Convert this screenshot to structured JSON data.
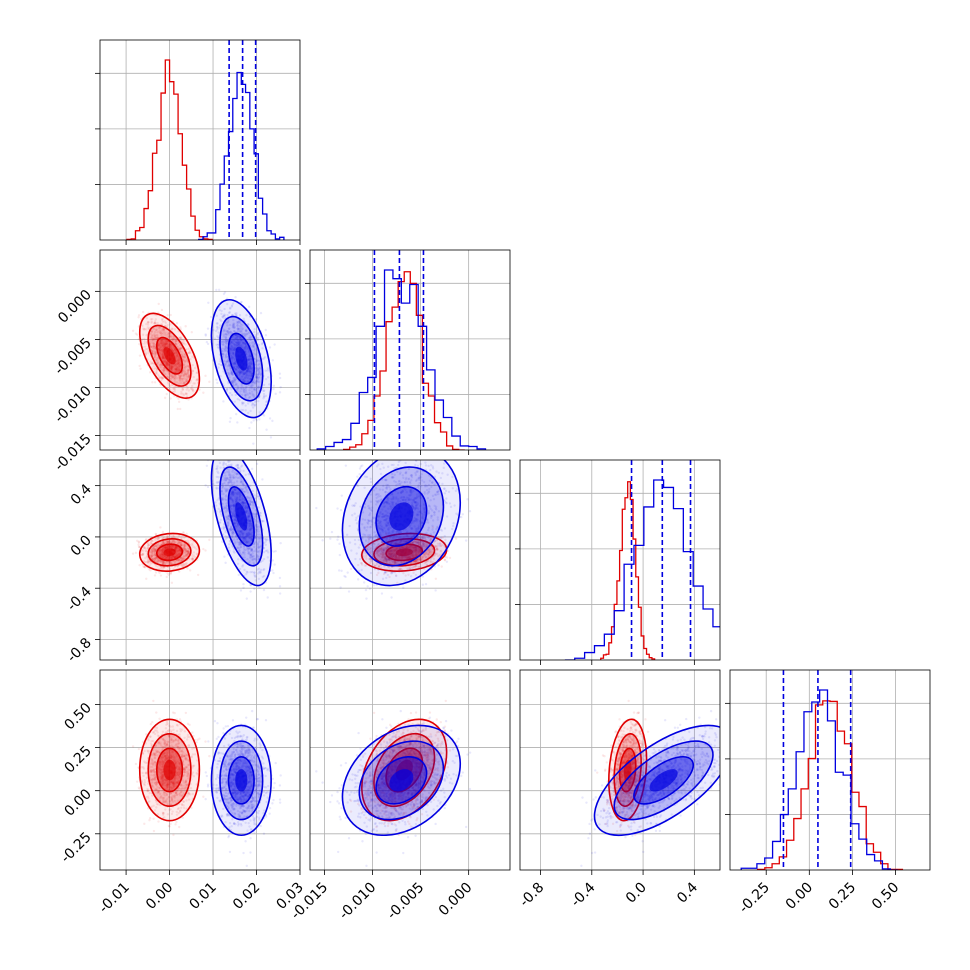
{
  "chart_data": {
    "type": "corner",
    "grid": true,
    "parameters": [
      {
        "range": [
          -0.016,
          0.03
        ],
        "ticks": [
          "-0.01",
          "0.00",
          "0.01",
          "0.02",
          "0.03"
        ],
        "tick_values": [
          -0.01,
          0.0,
          0.01,
          0.02,
          0.03
        ]
      },
      {
        "range": [
          -0.0165,
          0.0043
        ],
        "ticks": [
          "-0.015",
          "-0.010",
          "-0.005",
          "0.000"
        ],
        "tick_values": [
          -0.015,
          -0.01,
          -0.005,
          0.0
        ]
      },
      {
        "range": [
          -0.96,
          0.6
        ],
        "ticks": [
          "-0.8",
          "-0.4",
          "0.0",
          "0.4"
        ],
        "tick_values": [
          -0.8,
          -0.4,
          0.0,
          0.4
        ]
      },
      {
        "range": [
          -0.46,
          0.7
        ],
        "ticks": [
          "-0.25",
          "0.00",
          "0.25",
          "0.50"
        ],
        "tick_values": [
          -0.25,
          0.0,
          0.25,
          0.5
        ]
      }
    ],
    "series": [
      {
        "color": "#e00000",
        "means": [
          0.0,
          -0.0067,
          -0.12,
          0.12
        ],
        "sds": [
          0.0028,
          0.0018,
          0.06,
          0.12
        ],
        "corr": [
          [
            1,
            -0.55,
            0.1,
            0.0
          ],
          [
            -0.55,
            1,
            0.15,
            0.35
          ],
          [
            0.1,
            0.15,
            1,
            0.2
          ],
          [
            0.0,
            0.35,
            0.2,
            1
          ]
        ]
      },
      {
        "color": "#0000e0",
        "means": [
          0.0165,
          -0.007,
          0.16,
          0.06
        ],
        "sds": [
          0.0028,
          0.0025,
          0.22,
          0.13
        ],
        "corr": [
          [
            1,
            -0.4,
            -0.55,
            0.0
          ],
          [
            -0.4,
            1,
            0.2,
            0.3
          ],
          [
            -0.55,
            0.2,
            1,
            0.65
          ],
          [
            0.0,
            0.3,
            0.65,
            1
          ]
        ]
      }
    ],
    "quantile_lines": [
      [
        0.0137,
        0.0168,
        0.0198
      ],
      [
        -0.0098,
        -0.0072,
        -0.0047
      ],
      [
        -0.09,
        0.15,
        0.37
      ],
      [
        -0.15,
        0.05,
        0.24
      ]
    ]
  }
}
